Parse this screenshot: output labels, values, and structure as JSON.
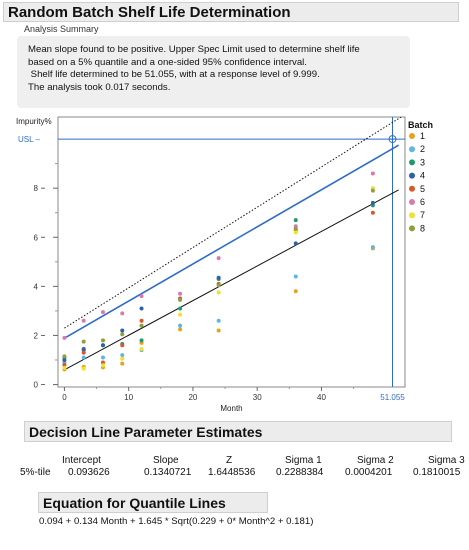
{
  "report_title": "Random Batch Shelf Life Determination",
  "summary": {
    "label": "Analysis Summary",
    "lines": [
      "Mean slope found to be positive. Upper Spec Limit used to determine shelf life",
      "based on a 5% quantile and a one-sided 95% confidence interval.",
      " Shelf life determined to be 51.055, with at a response level of 9.999.",
      "The analysis took 0.017 seconds."
    ]
  },
  "chart_data": {
    "type": "scatter",
    "xlabel": "Month",
    "ylabel": "Impurity%",
    "xlim": [
      -1,
      53
    ],
    "ylim": [
      -0.1,
      10.9
    ],
    "x_ticks": [
      0,
      10,
      20,
      30,
      40
    ],
    "y_ticks": [
      0,
      2,
      4,
      6,
      8
    ],
    "usl": {
      "label": "USL",
      "value": 10.0
    },
    "shelf_life": {
      "label": "51.055",
      "value": 51.055
    },
    "legend": {
      "title": "Batch",
      "placement": "right"
    },
    "series": [
      {
        "name": "1",
        "color": "#e8a21c",
        "points": [
          [
            0,
            0.62
          ],
          [
            3,
            0.72
          ],
          [
            6,
            0.7
          ],
          [
            9,
            0.85
          ],
          [
            12,
            1.7
          ],
          [
            18,
            2.25
          ],
          [
            24,
            2.2
          ],
          [
            36,
            3.8
          ],
          [
            48,
            5.55
          ]
        ]
      },
      {
        "name": "2",
        "color": "#5eb5e6",
        "points": [
          [
            0,
            0.9
          ],
          [
            3,
            1.1
          ],
          [
            6,
            1.1
          ],
          [
            9,
            1.2
          ],
          [
            12,
            1.4
          ],
          [
            18,
            2.4
          ],
          [
            24,
            2.6
          ],
          [
            36,
            4.4
          ],
          [
            48,
            5.6
          ]
        ]
      },
      {
        "name": "3",
        "color": "#1f9a6e",
        "points": [
          [
            0,
            1.1
          ],
          [
            3,
            1.4
          ],
          [
            6,
            1.6
          ],
          [
            9,
            1.65
          ],
          [
            12,
            1.8
          ],
          [
            18,
            3.1
          ],
          [
            24,
            4.3
          ],
          [
            36,
            6.7
          ],
          [
            48,
            7.3
          ]
        ]
      },
      {
        "name": "4",
        "color": "#2b62a8",
        "points": [
          [
            0,
            1.0
          ],
          [
            3,
            1.45
          ],
          [
            6,
            1.6
          ],
          [
            9,
            2.2
          ],
          [
            12,
            3.1
          ],
          [
            18,
            3.5
          ],
          [
            24,
            4.35
          ],
          [
            36,
            5.75
          ],
          [
            48,
            7.4
          ]
        ]
      },
      {
        "name": "5",
        "color": "#d8582a",
        "points": [
          [
            0,
            0.8
          ],
          [
            3,
            1.3
          ],
          [
            6,
            0.9
          ],
          [
            9,
            1.6
          ],
          [
            12,
            2.6
          ],
          [
            18,
            3.5
          ],
          [
            24,
            4.1
          ],
          [
            36,
            6.3
          ],
          [
            48,
            7.0
          ]
        ]
      },
      {
        "name": "6",
        "color": "#d87ab0",
        "points": [
          [
            0,
            1.9
          ],
          [
            3,
            2.6
          ],
          [
            6,
            2.95
          ],
          [
            9,
            2.9
          ],
          [
            12,
            3.6
          ],
          [
            18,
            3.7
          ],
          [
            24,
            5.15
          ],
          [
            36,
            6.45
          ],
          [
            48,
            8.6
          ]
        ]
      },
      {
        "name": "7",
        "color": "#f0e030",
        "points": [
          [
            0,
            0.68
          ],
          [
            3,
            0.65
          ],
          [
            6,
            0.78
          ],
          [
            9,
            1.05
          ],
          [
            12,
            1.45
          ],
          [
            18,
            2.85
          ],
          [
            24,
            3.75
          ],
          [
            36,
            6.2
          ],
          [
            48,
            8.0
          ]
        ]
      },
      {
        "name": "8",
        "color": "#8e9f3c",
        "points": [
          [
            0,
            1.15
          ],
          [
            3,
            1.75
          ],
          [
            6,
            1.8
          ],
          [
            9,
            2.05
          ],
          [
            12,
            2.4
          ],
          [
            18,
            3.45
          ],
          [
            24,
            4.05
          ],
          [
            36,
            6.35
          ],
          [
            48,
            7.9
          ]
        ]
      }
    ],
    "lines": [
      {
        "kind": "quantile",
        "color": "#2e6cc7",
        "points": [
          [
            0,
            1.89
          ],
          [
            52,
            9.75
          ]
        ]
      },
      {
        "kind": "mean",
        "color": "#111111",
        "points": [
          [
            0,
            0.6
          ],
          [
            52,
            7.93
          ]
        ]
      },
      {
        "kind": "confidence-bound",
        "color": "#111111",
        "style": "dotted",
        "points": [
          [
            0,
            2.3
          ],
          [
            53,
            11.0
          ]
        ]
      }
    ]
  },
  "params": {
    "title": "Decision Line Parameter Estimates",
    "headers": [
      "Intercept",
      "Slope",
      "Z",
      "Sigma 1",
      "Sigma 2",
      "Sigma 3"
    ],
    "row_label": "5%-tile",
    "values": [
      "0.093626",
      "0.1340721",
      "1.6448536",
      "0.2288384",
      "0.0004201",
      "0.1810015"
    ]
  },
  "equation": {
    "title": "Equation for Quantile Lines",
    "text": "0.094 + 0.134 Month + 1.645 * Sqrt(0.229 + 0* Month^2 + 0.181)"
  }
}
